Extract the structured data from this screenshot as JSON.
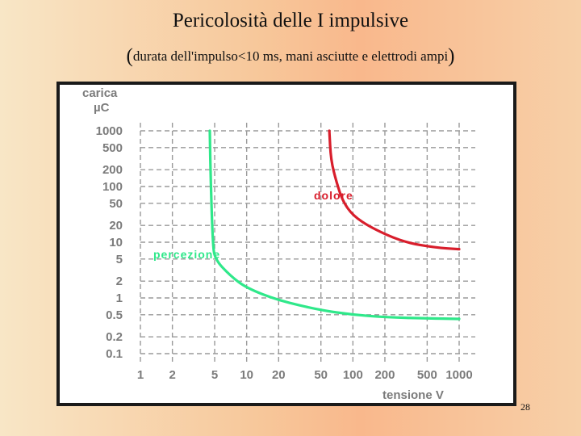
{
  "slide": {
    "title": "Pericolosità delle I impulsive",
    "subtitle_open": "(",
    "subtitle_text": "durata dell'impulso<10 ms, mani asciutte e elettrodi ampi",
    "subtitle_close": ")",
    "page_number": "28"
  },
  "chart_data": {
    "type": "line",
    "title": "",
    "ylabel_line1": "carica",
    "ylabel_line2": "µC",
    "xlabel": "tensione V",
    "x_ticks": [
      "1",
      "2",
      "5",
      "10",
      "20",
      "50",
      "100",
      "200",
      "500",
      "1000"
    ],
    "y_ticks": [
      "1000",
      "500",
      "200",
      "100",
      "50",
      "20",
      "10",
      "5",
      "2",
      "1",
      "0.5",
      "0.2",
      "0.1"
    ],
    "x_scale": "log",
    "y_scale": "log",
    "xlim": [
      1,
      1000
    ],
    "ylim": [
      0.1,
      1000
    ],
    "grid": true,
    "series": [
      {
        "name": "percezione",
        "color": "#2fe88a",
        "points": [
          [
            4.5,
            1000
          ],
          [
            4.6,
            100
          ],
          [
            4.8,
            10
          ],
          [
            5,
            5
          ],
          [
            7,
            2.5
          ],
          [
            10,
            1.5
          ],
          [
            20,
            0.9
          ],
          [
            50,
            0.6
          ],
          [
            100,
            0.5
          ],
          [
            200,
            0.45
          ],
          [
            500,
            0.43
          ],
          [
            1000,
            0.42
          ]
        ]
      },
      {
        "name": "dolore",
        "color": "#d81e2c",
        "points": [
          [
            60,
            1000
          ],
          [
            62,
            300
          ],
          [
            70,
            120
          ],
          [
            80,
            55
          ],
          [
            100,
            30
          ],
          [
            150,
            18
          ],
          [
            300,
            10
          ],
          [
            600,
            8
          ],
          [
            1000,
            7.5
          ]
        ]
      }
    ]
  }
}
